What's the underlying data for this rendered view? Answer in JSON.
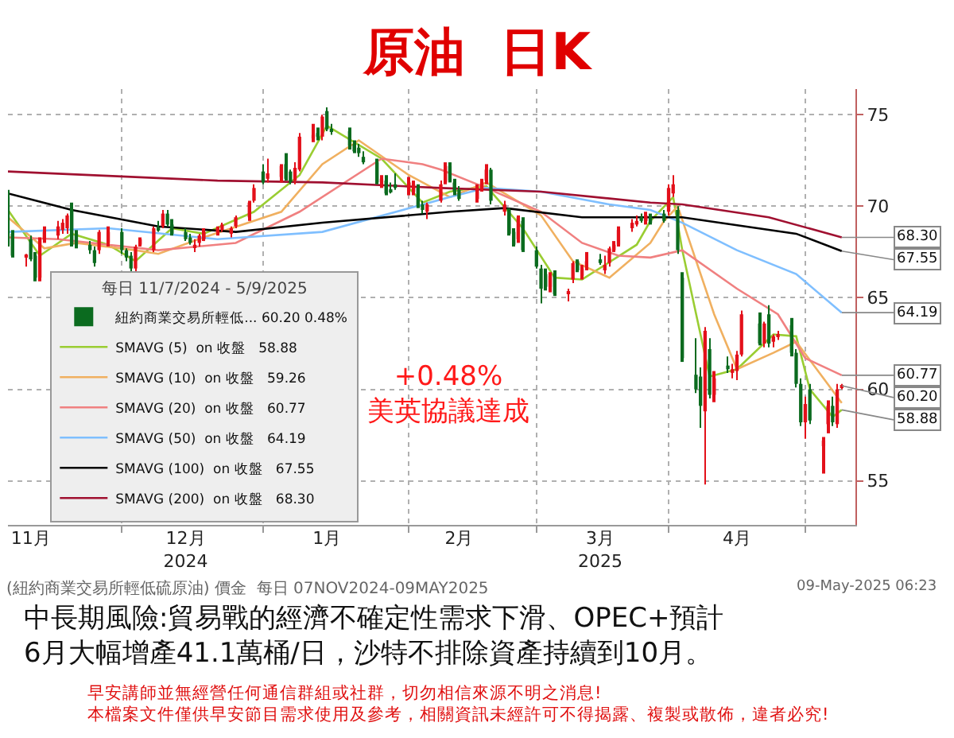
{
  "chart_data": {
    "type": "candlestick",
    "title": "原油  日K",
    "legend_title": "每日 11/7/2024 - 5/9/2025",
    "legend": "bottom left",
    "grid": true,
    "ylim": [
      52.6,
      76.4
    ],
    "yticks": [
      55,
      60,
      65,
      70,
      75
    ],
    "xlim": [
      "2024-11-07",
      "2025-05-12"
    ],
    "xticks": [
      {
        "value": "2024-12-02",
        "label": null
      },
      {
        "value": "2025-01-02",
        "label": null
      },
      {
        "value": "2025-02-03",
        "label": null
      },
      {
        "value": "2025-03-03",
        "label": null
      },
      {
        "value": "2025-04-01",
        "label": null
      },
      {
        "value": "2025-05-01",
        "label": null
      },
      {
        "value": "2024-11-12",
        "label": "11月"
      },
      {
        "value": "2024-12-16",
        "label": "12月\n2024"
      },
      {
        "value": "2025-01-16",
        "label": "1月"
      },
      {
        "value": "2025-02-14",
        "label": "2月"
      },
      {
        "value": "2025-03-17",
        "label": "3月\n2025"
      },
      {
        "value": "2025-04-16",
        "label": "4月"
      }
    ],
    "series": [
      {
        "name": "紐約商業交易所輕低... 60.20 0.48%",
        "colors": [
          "#0b6b1f",
          "#0b6b1f",
          "#e3101a",
          "#0b6b1f",
          "#0b6b1f",
          "#e3101a",
          "#e3101a",
          "#e3101a",
          "#e3101a",
          "#e3101a",
          "#0b6b1f",
          "#0b6b1f",
          "#0b6b1f",
          "#0b6b1f",
          "#e3101a",
          "#e3101a",
          "#0b6b1f",
          "#0b6b1f",
          "#0b6b1f",
          "#e3101a",
          "#e3101a",
          "#e3101a",
          "#0b6b1f",
          "#e3101a",
          "#0b6b1f",
          "#0b6b1f",
          "#0b6b1f",
          "#0b6b1f",
          "#e3101a",
          "#e3101a",
          "#e3101a",
          "#e3101a",
          "#e3101a",
          "#e3101a",
          "#e3101a",
          "#e3101a",
          "#e3101a",
          "#0b6b1f",
          "#e3101a",
          "#e3101a",
          "#0b6b1f",
          "#0b6b1f",
          "#e3101a",
          "#e3101a",
          "#e3101a",
          "#0b6b1f",
          "#e3101a",
          "#0b6b1f",
          "#0b6b1f",
          "#0b6b1f",
          "#0b6b1f",
          "#0b6b1f",
          "#0b6b1f",
          "#0b6b1f",
          "#e3101a",
          "#0b6b1f",
          "#0b6b1f",
          "#0b6b1f",
          "#e3101a",
          "#e3101a",
          "#0b6b1f",
          "#0b6b1f",
          "#e3101a",
          "#e3101a",
          "#e3101a",
          "#0b6b1f",
          "#0b6b1f",
          "#0b6b1f",
          "#e3101a",
          "#e3101a",
          "#e3101a",
          "#0b6b1f",
          "#e3101a",
          "#0b6b1f",
          "#0b6b1f",
          "#e3101a",
          "#0b6b1f",
          "#0b6b1f",
          "#0b6b1f",
          "#0b6b1f",
          "#e3101a",
          "#0b6b1f",
          "#e3101a",
          "#e3101a",
          "#0b6b1f",
          "#e3101a",
          "#e3101a",
          "#0b6b1f",
          "#e3101a",
          "#e3101a",
          "#e3101a",
          "#e3101a",
          "#e3101a",
          "#e3101a",
          "#0b6b1f",
          "#e3101a",
          "#0b6b1f",
          "#0b6b1f",
          "#e3101a",
          "#e3101a",
          "#0b6b1f",
          "#0b6b1f",
          "#0b6b1f",
          "#0b6b1f",
          "#e3101a",
          "#0b6b1f",
          "#e3101a",
          "#0b6b1f",
          "#e3101a",
          "#e3101a",
          "#e3101a",
          "#0b6b1f",
          "#e3101a",
          "#0b6b1f",
          "#e3101a",
          "#e3101a",
          "#0b6b1f",
          "#0b6b1f",
          "#0b6b1f",
          "#e3101a",
          "#0b6b1f",
          "#e3101a",
          "#e3101a",
          "#0b6b1f",
          "#e3101a",
          "#e3101a"
        ],
        "x": [
          "2024-11-07",
          "2024-11-08",
          "2024-11-11",
          "2024-11-12",
          "2024-11-13",
          "2024-11-14",
          "2024-11-15",
          "2024-11-18",
          "2024-11-19",
          "2024-11-20",
          "2024-11-21",
          "2024-11-22",
          "2024-11-25",
          "2024-11-26",
          "2024-11-27",
          "2024-11-29",
          "2024-12-02",
          "2024-12-03",
          "2024-12-04",
          "2024-12-05",
          "2024-12-06",
          "2024-12-09",
          "2024-12-10",
          "2024-12-11",
          "2024-12-12",
          "2024-12-13",
          "2024-12-16",
          "2024-12-17",
          "2024-12-18",
          "2024-12-19",
          "2024-12-20",
          "2024-12-23",
          "2024-12-24",
          "2024-12-26",
          "2024-12-27",
          "2024-12-30",
          "2024-12-31",
          "2025-01-02",
          "2025-01-03",
          "2025-01-06",
          "2025-01-07",
          "2025-01-08",
          "2025-01-09",
          "2025-01-10",
          "2025-01-13",
          "2025-01-14",
          "2025-01-15",
          "2025-01-16",
          "2025-01-17",
          "2025-01-21",
          "2025-01-22",
          "2025-01-23",
          "2025-01-24",
          "2025-01-27",
          "2025-01-28",
          "2025-01-29",
          "2025-01-30",
          "2025-01-31",
          "2025-02-03",
          "2025-02-04",
          "2025-02-05",
          "2025-02-06",
          "2025-02-07",
          "2025-02-10",
          "2025-02-11",
          "2025-02-12",
          "2025-02-13",
          "2025-02-14",
          "2025-02-18",
          "2025-02-19",
          "2025-02-20",
          "2025-02-21",
          "2025-02-24",
          "2025-02-25",
          "2025-02-26",
          "2025-02-27",
          "2025-02-28",
          "2025-03-03",
          "2025-03-04",
          "2025-03-05",
          "2025-03-06",
          "2025-03-07",
          "2025-03-10",
          "2025-03-11",
          "2025-03-12",
          "2025-03-13",
          "2025-03-14",
          "2025-03-17",
          "2025-03-18",
          "2025-03-19",
          "2025-03-20",
          "2025-03-21",
          "2025-03-24",
          "2025-03-25",
          "2025-03-26",
          "2025-03-27",
          "2025-03-28",
          "2025-03-31",
          "2025-04-01",
          "2025-04-02",
          "2025-04-03",
          "2025-04-04",
          "2025-04-07",
          "2025-04-08",
          "2025-04-09",
          "2025-04-10",
          "2025-04-11",
          "2025-04-14",
          "2025-04-15",
          "2025-04-16",
          "2025-04-17",
          "2025-04-21",
          "2025-04-22",
          "2025-04-23",
          "2025-04-24",
          "2025-04-25",
          "2025-04-28",
          "2025-04-29",
          "2025-04-30",
          "2025-05-01",
          "2025-05-02",
          "2025-05-05",
          "2025-05-06",
          "2025-05-07",
          "2025-05-08",
          "2025-05-09"
        ],
        "ohlc": [
          [
            70.5,
            70.9,
            67.8,
            67.9
          ],
          [
            68.5,
            68.7,
            67.2,
            67.3
          ],
          [
            67.2,
            67.4,
            66.7,
            67.3
          ],
          [
            68.2,
            68.4,
            67.0,
            67.1
          ],
          [
            67.3,
            67.5,
            65.9,
            66.1
          ],
          [
            66.1,
            68.3,
            65.9,
            68.2
          ],
          [
            68.2,
            68.9,
            68.0,
            68.6
          ],
          [
            68.4,
            69.2,
            68.2,
            68.9
          ],
          [
            68.7,
            69.3,
            68.5,
            69.1
          ],
          [
            68.8,
            69.6,
            68.5,
            69.5
          ],
          [
            69.8,
            70.2,
            67.8,
            67.9
          ],
          [
            68.5,
            68.7,
            67.7,
            67.9
          ],
          [
            67.9,
            68.1,
            67.4,
            67.6
          ],
          [
            67.6,
            67.8,
            66.7,
            66.9
          ],
          [
            67.6,
            68.7,
            67.4,
            68.6
          ],
          [
            68.0,
            68.9,
            67.8,
            68.6
          ],
          [
            68.6,
            68.8,
            67.4,
            67.6
          ],
          [
            67.6,
            67.7,
            67.0,
            67.2
          ],
          [
            67.3,
            67.5,
            66.4,
            66.6
          ],
          [
            66.6,
            67.9,
            66.3,
            67.8
          ],
          [
            67.9,
            68.3,
            67.8,
            68.2
          ],
          [
            67.6,
            68.9,
            67.5,
            68.8
          ],
          [
            68.8,
            69.2,
            68.6,
            68.7
          ],
          [
            68.9,
            69.8,
            68.8,
            69.6
          ],
          [
            69.6,
            69.8,
            68.9,
            69.0
          ],
          [
            69.0,
            69.3,
            68.4,
            68.5
          ],
          [
            68.6,
            68.8,
            68.1,
            68.2
          ],
          [
            68.3,
            68.5,
            67.9,
            68.0
          ],
          [
            67.8,
            68.2,
            67.5,
            67.9
          ],
          [
            68.0,
            68.5,
            67.8,
            68.4
          ],
          [
            68.2,
            68.8,
            68.1,
            68.6
          ],
          [
            68.6,
            68.9,
            68.4,
            68.8
          ],
          [
            68.7,
            69.1,
            68.6,
            69.0
          ],
          [
            68.5,
            68.9,
            68.3,
            68.8
          ],
          [
            68.9,
            69.5,
            68.8,
            69.4
          ],
          [
            69.4,
            70.3,
            69.2,
            70.2
          ],
          [
            70.3,
            71.2,
            70.2,
            71.0
          ],
          [
            71.9,
            72.3,
            71.2,
            71.3
          ],
          [
            71.5,
            72.6,
            71.3,
            71.8
          ],
          [
            71.6,
            72.3,
            71.3,
            72.2
          ],
          [
            72.3,
            72.9,
            71.4,
            71.5
          ],
          [
            71.9,
            72.0,
            71.2,
            71.3
          ],
          [
            71.4,
            72.4,
            71.2,
            72.1
          ],
          [
            72.0,
            74.0,
            71.9,
            73.8
          ],
          [
            73.7,
            74.5,
            73.5,
            73.9
          ],
          [
            74.0,
            74.3,
            73.6,
            73.8
          ],
          [
            73.8,
            75.0,
            73.6,
            74.9
          ],
          [
            75.2,
            75.4,
            74.1,
            74.2
          ],
          [
            74.2,
            74.5,
            73.9,
            74.1
          ],
          [
            74.1,
            74.3,
            73.1,
            73.3
          ],
          [
            73.4,
            73.6,
            72.9,
            73.0
          ],
          [
            73.2,
            73.4,
            72.7,
            72.9
          ],
          [
            72.7,
            73.0,
            72.3,
            72.4
          ],
          [
            72.4,
            72.6,
            71.2,
            71.3
          ],
          [
            71.3,
            71.7,
            71.0,
            71.5
          ],
          [
            71.4,
            71.7,
            70.6,
            70.7
          ],
          [
            70.9,
            71.3,
            70.7,
            70.8
          ],
          [
            71.2,
            71.8,
            70.9,
            71.0
          ],
          [
            71.0,
            71.6,
            70.6,
            71.3
          ],
          [
            70.8,
            71.4,
            70.6,
            71.2
          ],
          [
            71.0,
            71.2,
            69.9,
            70.0
          ],
          [
            70.1,
            70.3,
            69.6,
            69.8
          ],
          [
            69.7,
            70.2,
            69.3,
            70.1
          ],
          [
            70.3,
            71.4,
            70.2,
            71.2
          ],
          [
            71.3,
            72.4,
            71.2,
            72.2
          ],
          [
            72.2,
            72.4,
            71.3,
            71.4
          ],
          [
            71.3,
            71.5,
            70.6,
            70.8
          ],
          [
            70.9,
            71.1,
            70.3,
            70.4
          ],
          [
            70.4,
            71.2,
            70.2,
            71.0
          ],
          [
            71.0,
            71.5,
            70.8,
            71.3
          ],
          [
            71.4,
            72.3,
            71.2,
            72.0
          ],
          [
            72.0,
            72.1,
            70.1,
            70.3
          ],
          [
            69.7,
            70.3,
            69.5,
            70.1
          ],
          [
            69.8,
            69.9,
            68.4,
            68.5
          ],
          [
            68.6,
            68.8,
            67.8,
            67.9
          ],
          [
            68.2,
            69.5,
            68.0,
            69.4
          ],
          [
            69.2,
            69.4,
            67.5,
            67.6
          ],
          [
            67.6,
            67.8,
            66.6,
            66.7
          ],
          [
            66.6,
            66.8,
            64.7,
            65.5
          ],
          [
            66.3,
            66.6,
            65.4,
            65.6
          ],
          [
            65.6,
            66.4,
            65.3,
            66.2
          ],
          [
            66.3,
            66.5,
            65.1,
            65.2
          ],
          [
            65.2,
            65.5,
            64.8,
            65.3
          ],
          [
            66.0,
            67.0,
            65.8,
            66.9
          ],
          [
            67.0,
            67.1,
            66.4,
            66.5
          ],
          [
            66.2,
            66.8,
            66.0,
            66.6
          ],
          [
            66.7,
            67.5,
            66.5,
            67.0
          ],
          [
            67.1,
            67.4,
            66.8,
            66.9
          ],
          [
            66.5,
            67.3,
            66.3,
            66.8
          ],
          [
            66.9,
            67.8,
            66.7,
            67.7
          ],
          [
            67.6,
            68.1,
            67.5,
            67.9
          ],
          [
            67.9,
            68.9,
            67.8,
            68.7
          ],
          [
            68.8,
            69.3,
            68.6,
            69.1
          ],
          [
            69.0,
            69.5,
            68.9,
            69.2
          ],
          [
            69.4,
            69.6,
            69.1,
            69.2
          ],
          [
            69.2,
            69.7,
            69.0,
            69.5
          ],
          [
            69.4,
            69.6,
            69.0,
            69.1
          ],
          [
            69.6,
            69.8,
            69.1,
            69.2
          ],
          [
            69.7,
            71.2,
            69.5,
            71.0
          ],
          [
            70.7,
            71.7,
            70.5,
            71.2
          ],
          [
            69.8,
            70.0,
            67.4,
            67.6
          ],
          [
            66.1,
            66.4,
            61.5,
            61.7
          ],
          [
            60.8,
            62.8,
            59.8,
            60.0
          ],
          [
            60.7,
            61.2,
            57.9,
            59.1
          ],
          [
            58.8,
            63.4,
            54.8,
            63.2
          ],
          [
            62.2,
            62.8,
            59.5,
            59.7
          ],
          [
            59.7,
            61.0,
            59.3,
            60.6
          ],
          [
            61.3,
            61.8,
            60.9,
            61.1
          ],
          [
            60.9,
            61.4,
            60.6,
            61.1
          ],
          [
            61.0,
            62.1,
            60.5,
            61.9
          ],
          [
            61.9,
            64.3,
            61.8,
            64.1
          ],
          [
            63.6,
            64.2,
            62.4,
            62.5
          ],
          [
            62.5,
            63.7,
            62.3,
            63.6
          ],
          [
            64.1,
            64.6,
            62.3,
            62.5
          ],
          [
            62.6,
            63.0,
            62.3,
            62.9
          ],
          [
            62.9,
            63.2,
            62.7,
            63.0
          ],
          [
            63.5,
            63.9,
            61.8,
            62.0
          ],
          [
            62.0,
            62.2,
            60.1,
            60.3
          ],
          [
            60.3,
            60.6,
            58.0,
            58.2
          ],
          [
            58.2,
            59.6,
            57.3,
            59.2
          ],
          [
            60.0,
            60.3,
            58.1,
            58.3
          ],
          [
            56.9,
            57.4,
            55.4,
            57.2
          ],
          [
            58.1,
            59.4,
            57.6,
            59.1
          ],
          [
            59.1,
            59.6,
            58.0,
            58.2
          ],
          [
            58.1,
            60.3,
            57.9,
            60.0
          ],
          [
            60.1,
            60.3,
            60.0,
            60.2
          ]
        ]
      },
      {
        "type": "line",
        "name": "SMAVG (5)  on 收盤   58.88",
        "color": "#9acd32",
        "x": [
          "2024-11-07",
          "2024-11-14",
          "2024-11-21",
          "2024-11-29",
          "2024-12-05",
          "2024-12-13",
          "2024-12-20",
          "2024-12-31",
          "2025-01-10",
          "2025-01-16",
          "2025-01-28",
          "2025-02-06",
          "2025-02-12",
          "2025-02-20",
          "2025-02-28",
          "2025-03-07",
          "2025-03-13",
          "2025-03-25",
          "2025-03-28",
          "2025-04-02",
          "2025-04-04",
          "2025-04-10",
          "2025-04-16",
          "2025-04-24",
          "2025-04-29",
          "2025-05-02",
          "2025-05-07",
          "2025-05-09"
        ],
        "values": [
          69.8,
          67.3,
          68.5,
          67.9,
          67.0,
          68.8,
          68.5,
          69.7,
          71.7,
          74.4,
          72.6,
          70.2,
          70.8,
          71.1,
          68.8,
          66.1,
          66.0,
          67.9,
          69.2,
          70.5,
          67.6,
          60.7,
          61.1,
          63.0,
          62.9,
          60.0,
          58.5,
          58.88
        ]
      },
      {
        "type": "line",
        "name": "SMAVG (10)  on 收盤   59.26",
        "color": "#f0b060",
        "x": [
          "2024-11-07",
          "2024-11-15",
          "2024-11-22",
          "2024-12-05",
          "2024-12-10",
          "2024-12-20",
          "2025-01-06",
          "2025-01-15",
          "2025-01-23",
          "2025-02-03",
          "2025-02-12",
          "2025-02-20",
          "2025-03-04",
          "2025-03-11",
          "2025-03-19",
          "2025-03-28",
          "2025-03-31",
          "2025-04-03",
          "2025-04-11",
          "2025-04-16",
          "2025-04-24",
          "2025-04-29",
          "2025-05-05",
          "2025-05-09"
        ],
        "values": [
          69.4,
          67.7,
          68.0,
          67.6,
          67.4,
          68.3,
          69.7,
          72.3,
          73.6,
          71.7,
          70.5,
          71.3,
          69.5,
          67.0,
          66.1,
          68.0,
          69.2,
          70.0,
          64.1,
          61.1,
          62.0,
          62.6,
          60.6,
          59.26
        ]
      },
      {
        "type": "line",
        "name": "SMAVG (20)  on 收盤   60.77",
        "color": "#f08080",
        "x": [
          "2024-11-07",
          "2024-11-18",
          "2024-11-29",
          "2024-12-10",
          "2024-12-27",
          "2025-01-10",
          "2025-01-28",
          "2025-02-06",
          "2025-02-10",
          "2025-02-20",
          "2025-03-04",
          "2025-03-13",
          "2025-03-21",
          "2025-03-28",
          "2025-04-04",
          "2025-04-16",
          "2025-04-25",
          "2025-05-01",
          "2025-05-09"
        ],
        "values": [
          68.3,
          68.2,
          67.9,
          67.6,
          68.0,
          69.7,
          72.6,
          72.3,
          72.0,
          71.0,
          69.7,
          68.0,
          67.3,
          67.2,
          67.6,
          65.5,
          64.1,
          61.7,
          60.77
        ]
      },
      {
        "type": "line",
        "name": "SMAVG (50)  on 收盤   64.19",
        "color": "#7fbfff",
        "x": [
          "2024-11-07",
          "2024-11-29",
          "2024-12-23",
          "2025-01-15",
          "2025-02-12",
          "2025-02-20",
          "2025-03-04",
          "2025-03-19",
          "2025-03-28",
          "2025-04-04",
          "2025-04-16",
          "2025-04-29",
          "2025-05-09"
        ],
        "values": [
          68.6,
          68.8,
          68.2,
          68.6,
          70.5,
          71.0,
          70.8,
          70.1,
          69.8,
          69.1,
          67.6,
          66.3,
          64.19
        ]
      },
      {
        "type": "line",
        "name": "SMAVG (100)  on 收盤   67.55",
        "color": "#000000",
        "x": [
          "2024-11-07",
          "2024-11-21",
          "2024-12-10",
          "2024-12-27",
          "2025-01-15",
          "2025-02-12",
          "2025-02-24",
          "2025-03-13",
          "2025-04-04",
          "2025-04-29",
          "2025-05-09"
        ],
        "values": [
          70.7,
          69.8,
          68.9,
          68.6,
          69.1,
          69.7,
          69.9,
          69.4,
          69.4,
          68.5,
          67.55
        ]
      },
      {
        "type": "line",
        "name": "SMAVG (200)  on 收盤   68.30",
        "color": "#a01030",
        "x": [
          "2024-11-07",
          "2024-12-23",
          "2025-01-15",
          "2025-02-10",
          "2025-03-04",
          "2025-03-28",
          "2025-04-04",
          "2025-04-23",
          "2025-05-09"
        ],
        "values": [
          71.9,
          71.4,
          71.3,
          71.0,
          70.8,
          70.2,
          70.1,
          69.4,
          68.3
        ]
      }
    ],
    "annotations": [
      "+0.48%\n美英協議達成",
      "(紐約商業交易所輕低硫原油) 價金  每日 07NOV2024-09MAY2025",
      "09-May-2025 06:23",
      "中長期風險:貿易戰的經濟不確定性需求下滑、OPEC+預計\n6月大幅增產41.1萬桶/日，沙特不排除資產持續到10月。",
      "早安講師並無經營任何通信群組或社群，切勿相信來源不明之消息!\n本檔案文件僅供早安節目需求使用及參考，相關資訊未經許可不得揭露、複製或散佈，違者必究!",
      {
        "text": "68.30",
        "x": "2025-05-09",
        "y": 68.3
      },
      {
        "text": "67.55",
        "x": "2025-05-09",
        "y": 67.55
      },
      {
        "text": "64.19",
        "x": "2025-05-09",
        "y": 64.19
      },
      {
        "text": "60.77",
        "x": "2025-05-09",
        "y": 60.77
      },
      {
        "text": "60.20",
        "x": "2025-05-09",
        "y": 60.2
      },
      {
        "text": "58.88",
        "x": "2025-05-09",
        "y": 58.88
      }
    ]
  }
}
